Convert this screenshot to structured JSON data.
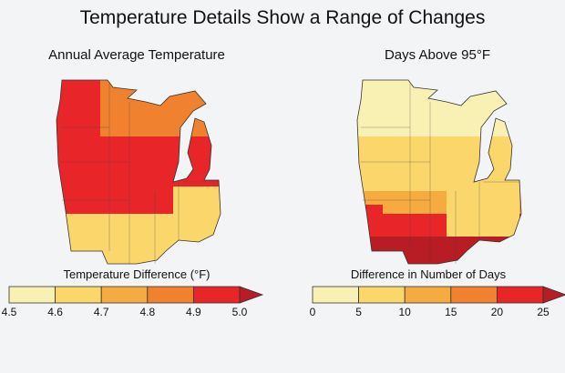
{
  "title": "Temperature Details Show a Range of Changes",
  "maps": [
    {
      "title": "Annual Average Temperature",
      "legend_title": "Temperature Difference (°F)",
      "ticks": [
        "4.5",
        "4.6",
        "4.7",
        "4.8",
        "4.9",
        "5.0"
      ],
      "colors": [
        "#f9f1b4",
        "#fbd76b",
        "#f6ab40",
        "#f0812e",
        "#e8262a",
        "#b81c24"
      ]
    },
    {
      "title": "Days Above 95°F",
      "legend_title": "Difference in Number of Days",
      "ticks": [
        "0",
        "5",
        "10",
        "15",
        "20",
        "25"
      ],
      "colors": [
        "#f9f1b4",
        "#fbd76b",
        "#f6ab40",
        "#f0812e",
        "#e8262a",
        "#b81c24"
      ]
    }
  ]
}
